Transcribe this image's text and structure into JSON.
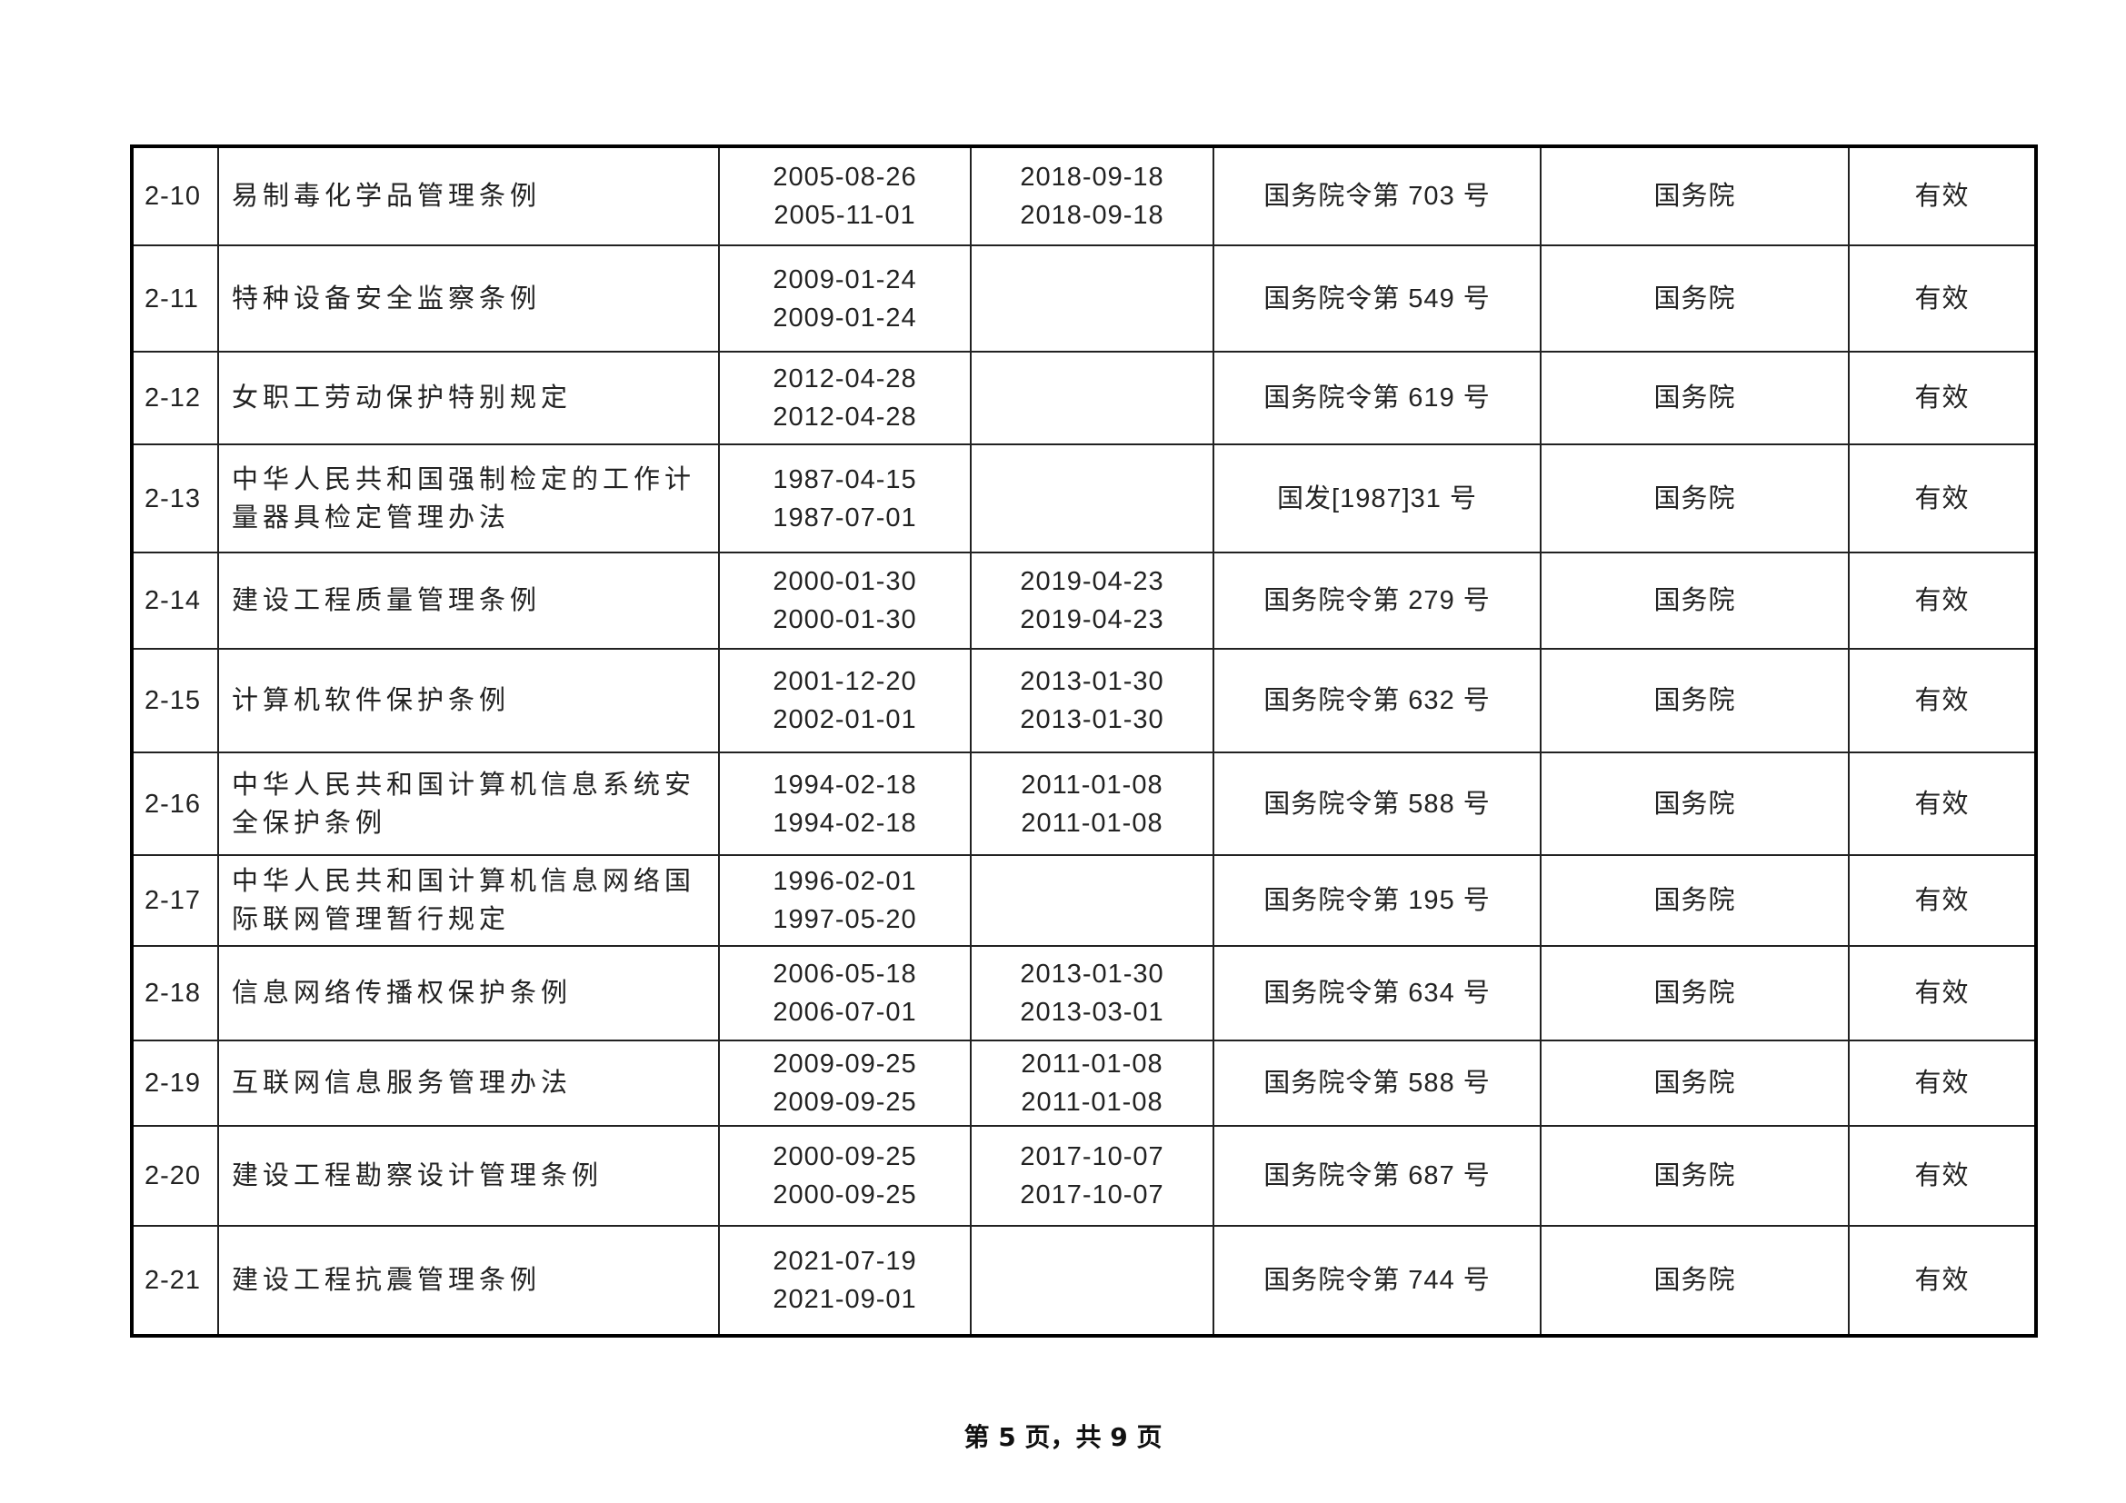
{
  "rows": [
    {
      "no": "2-10",
      "name": "易制毒化学品管理条例",
      "issued": "2005-08-26",
      "effective": "2005-11-01",
      "rev1": "2018-09-18",
      "rev2": "2018-09-18",
      "doc": "国务院令第 703 号",
      "authority": "国务院",
      "status": "有效"
    },
    {
      "no": "2-11",
      "name": "特种设备安全监察条例",
      "issued": "2009-01-24",
      "effective": "2009-01-24",
      "rev1": "",
      "rev2": "",
      "doc": "国务院令第 549 号",
      "authority": "国务院",
      "status": "有效"
    },
    {
      "no": "2-12",
      "name": "女职工劳动保护特别规定",
      "issued": "2012-04-28",
      "effective": "2012-04-28",
      "rev1": "",
      "rev2": "",
      "doc": "国务院令第 619 号",
      "authority": "国务院",
      "status": "有效"
    },
    {
      "no": "2-13",
      "name": "中华人民共和国强制检定的工作计量器具检定管理办法",
      "issued": "1987-04-15",
      "effective": "1987-07-01",
      "rev1": "",
      "rev2": "",
      "doc": "国发[1987]31 号",
      "authority": "国务院",
      "status": "有效"
    },
    {
      "no": "2-14",
      "name": "建设工程质量管理条例",
      "issued": "2000-01-30",
      "effective": "2000-01-30",
      "rev1": "2019-04-23",
      "rev2": "2019-04-23",
      "doc": "国务院令第 279 号",
      "authority": "国务院",
      "status": "有效"
    },
    {
      "no": "2-15",
      "name": "计算机软件保护条例",
      "issued": "2001-12-20",
      "effective": "2002-01-01",
      "rev1": "2013-01-30",
      "rev2": "2013-01-30",
      "doc": "国务院令第 632 号",
      "authority": "国务院",
      "status": "有效"
    },
    {
      "no": "2-16",
      "name": "中华人民共和国计算机信息系统安全保护条例",
      "issued": "1994-02-18",
      "effective": "1994-02-18",
      "rev1": "2011-01-08",
      "rev2": "2011-01-08",
      "doc": "国务院令第 588 号",
      "authority": "国务院",
      "status": "有效"
    },
    {
      "no": "2-17",
      "name": "中华人民共和国计算机信息网络国际联网管理暂行规定",
      "issued": "1996-02-01",
      "effective": "1997-05-20",
      "rev1": "",
      "rev2": "",
      "doc": "国务院令第 195 号",
      "authority": "国务院",
      "status": "有效"
    },
    {
      "no": "2-18",
      "name": "信息网络传播权保护条例",
      "issued": "2006-05-18",
      "effective": "2006-07-01",
      "rev1": "2013-01-30",
      "rev2": "2013-03-01",
      "doc": "国务院令第 634 号",
      "authority": "国务院",
      "status": "有效"
    },
    {
      "no": "2-19",
      "name": "互联网信息服务管理办法",
      "issued": "2009-09-25",
      "effective": "2009-09-25",
      "rev1": "2011-01-08",
      "rev2": "2011-01-08",
      "doc": "国务院令第 588 号",
      "authority": "国务院",
      "status": "有效"
    },
    {
      "no": "2-20",
      "name": "建设工程勘察设计管理条例",
      "issued": "2000-09-25",
      "effective": "2000-09-25",
      "rev1": "2017-10-07",
      "rev2": "2017-10-07",
      "doc": "国务院令第 687 号",
      "authority": "国务院",
      "status": "有效"
    },
    {
      "no": "2-21",
      "name": "建设工程抗震管理条例",
      "issued": "2021-07-19",
      "effective": "2021-09-01",
      "rev1": "",
      "rev2": "",
      "doc": "国务院令第 744 号",
      "authority": "国务院",
      "status": "有效"
    }
  ],
  "footer": "第 5 页，共 9 页"
}
